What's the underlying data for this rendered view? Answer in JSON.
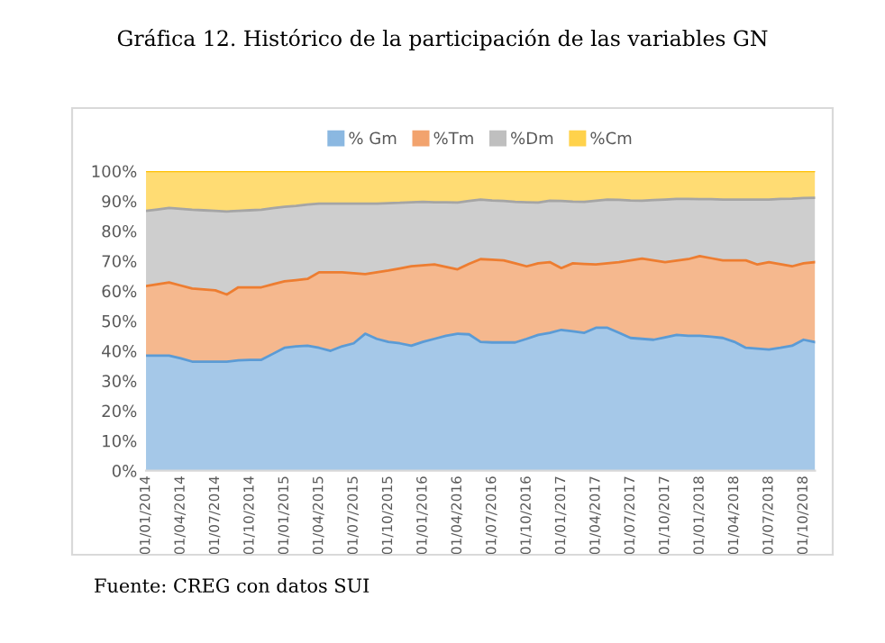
{
  "chart_data": {
    "type": "area",
    "stacked": true,
    "title": "Gráfica 12. Histórico de la participación de las variables GN",
    "categories": [
      "01/01/2014",
      null,
      null,
      "01/04/2014",
      null,
      null,
      "01/07/2014",
      null,
      null,
      "01/10/2014",
      null,
      null,
      "01/01/2015",
      null,
      null,
      "01/04/2015",
      null,
      null,
      "01/07/2015",
      null,
      null,
      "01/10/2015",
      null,
      null,
      "01/01/2016",
      null,
      null,
      "01/04/2016",
      null,
      null,
      "01/07/2016",
      null,
      null,
      "01/10/2016",
      null,
      null,
      "01/01/2017",
      null,
      null,
      "01/04/2017",
      null,
      null,
      "01/07/2017",
      null,
      null,
      "01/10/2017",
      null,
      null,
      "01/01/2018",
      null,
      null,
      "01/04/2018",
      null,
      null,
      "01/07/2018",
      null,
      null,
      "01/10/2018",
      null
    ],
    "series": [
      {
        "name": "% Gm",
        "color": "#5b9bd5",
        "values": [
          38.4,
          38.4,
          38.4,
          37.5,
          36.4,
          36.4,
          36.4,
          36.4,
          36.8,
          37,
          37,
          39,
          41,
          41.5,
          41.7,
          41,
          40,
          41.5,
          42.5,
          45.7,
          44,
          43,
          42.5,
          41.7,
          43,
          44,
          45,
          45.7,
          45.5,
          43,
          42.8,
          42.8,
          42.8,
          44,
          45.3,
          46,
          47,
          46.5,
          46,
          47.7,
          47.7,
          46,
          44.3,
          44,
          43.7,
          44.5,
          45.3,
          45,
          45,
          44.7,
          44.3,
          43,
          41,
          40.7,
          40.4,
          41,
          41.7,
          43.7,
          42.9
        ]
      },
      {
        "name": "%Tm",
        "color": "#ed7d31",
        "values": [
          23.2,
          23.8,
          24.4,
          24.3,
          24.4,
          24.1,
          23.8,
          22.4,
          24.4,
          24.2,
          24.2,
          23.2,
          22.2,
          22.1,
          22.3,
          25.2,
          26.2,
          24.7,
          23.4,
          19.9,
          22.2,
          23.8,
          25,
          26.5,
          25.5,
          24.8,
          23,
          21.5,
          23.5,
          27.6,
          27.6,
          27.4,
          26.4,
          24.2,
          23.9,
          23.6,
          20.6,
          22.7,
          23,
          21.1,
          21.5,
          23.6,
          25.9,
          26.8,
          26.5,
          25.1,
          24.8,
          25.6,
          26.6,
          26.2,
          25.9,
          27.2,
          29.2,
          28.1,
          29.2,
          27.9,
          26.5,
          25.5,
          26.7
        ]
      },
      {
        "name": "%Dm",
        "color": "#a5a5a5",
        "values": [
          25.1,
          25,
          24.9,
          25.6,
          26.3,
          26.4,
          26.5,
          27.7,
          25.5,
          25.7,
          25.9,
          25.4,
          24.9,
          24.8,
          24.8,
          22.9,
          22.9,
          22.9,
          23.2,
          23.5,
          22.9,
          22.5,
          21.9,
          21.4,
          21.2,
          20.8,
          21.6,
          22.3,
          21,
          19.9,
          19.8,
          19.8,
          20.5,
          21.4,
          20.3,
          20.5,
          22.4,
          20.6,
          20.7,
          21.3,
          21.3,
          20.8,
          20,
          19.3,
          20.1,
          20.9,
          20.6,
          20.1,
          19,
          19.7,
          20.3,
          20.3,
          20.3,
          21.7,
          20.9,
          21.8,
          22.6,
          21.8,
          21.5
        ]
      },
      {
        "name": "%Cm",
        "color": "#ffc000",
        "values": [
          13.3,
          12.8,
          12.3,
          12.6,
          12.9,
          13.1,
          13.3,
          13.5,
          13.3,
          13.1,
          12.9,
          12.4,
          11.9,
          11.6,
          11.2,
          10.9,
          10.9,
          10.9,
          10.9,
          10.9,
          10.9,
          10.7,
          10.6,
          10.4,
          10.3,
          10.4,
          10.4,
          10.5,
          10,
          9.5,
          9.8,
          10,
          10.3,
          10.4,
          10.5,
          9.9,
          10,
          10.2,
          10.3,
          9.9,
          9.5,
          9.6,
          9.8,
          9.9,
          9.7,
          9.5,
          9.3,
          9.3,
          9.4,
          9.4,
          9.5,
          9.5,
          9.5,
          9.5,
          9.5,
          9.3,
          9.2,
          9,
          8.9
        ]
      }
    ],
    "ylim": [
      0,
      100
    ],
    "yticks": [
      {
        "value": 0,
        "label": "0%"
      },
      {
        "value": 10,
        "label": "10%"
      },
      {
        "value": 20,
        "label": "20%"
      },
      {
        "value": 30,
        "label": "30%"
      },
      {
        "value": 40,
        "label": "40%"
      },
      {
        "value": 50,
        "label": "50%"
      },
      {
        "value": 60,
        "label": "60%"
      },
      {
        "value": 70,
        "label": "70%"
      },
      {
        "value": 80,
        "label": "80%"
      },
      {
        "value": 90,
        "label": "90%"
      },
      {
        "value": 100,
        "label": "100%"
      }
    ],
    "grid": false,
    "legend": "top",
    "annotations": [
      "Fuente: CREG con datos SUI"
    ]
  }
}
